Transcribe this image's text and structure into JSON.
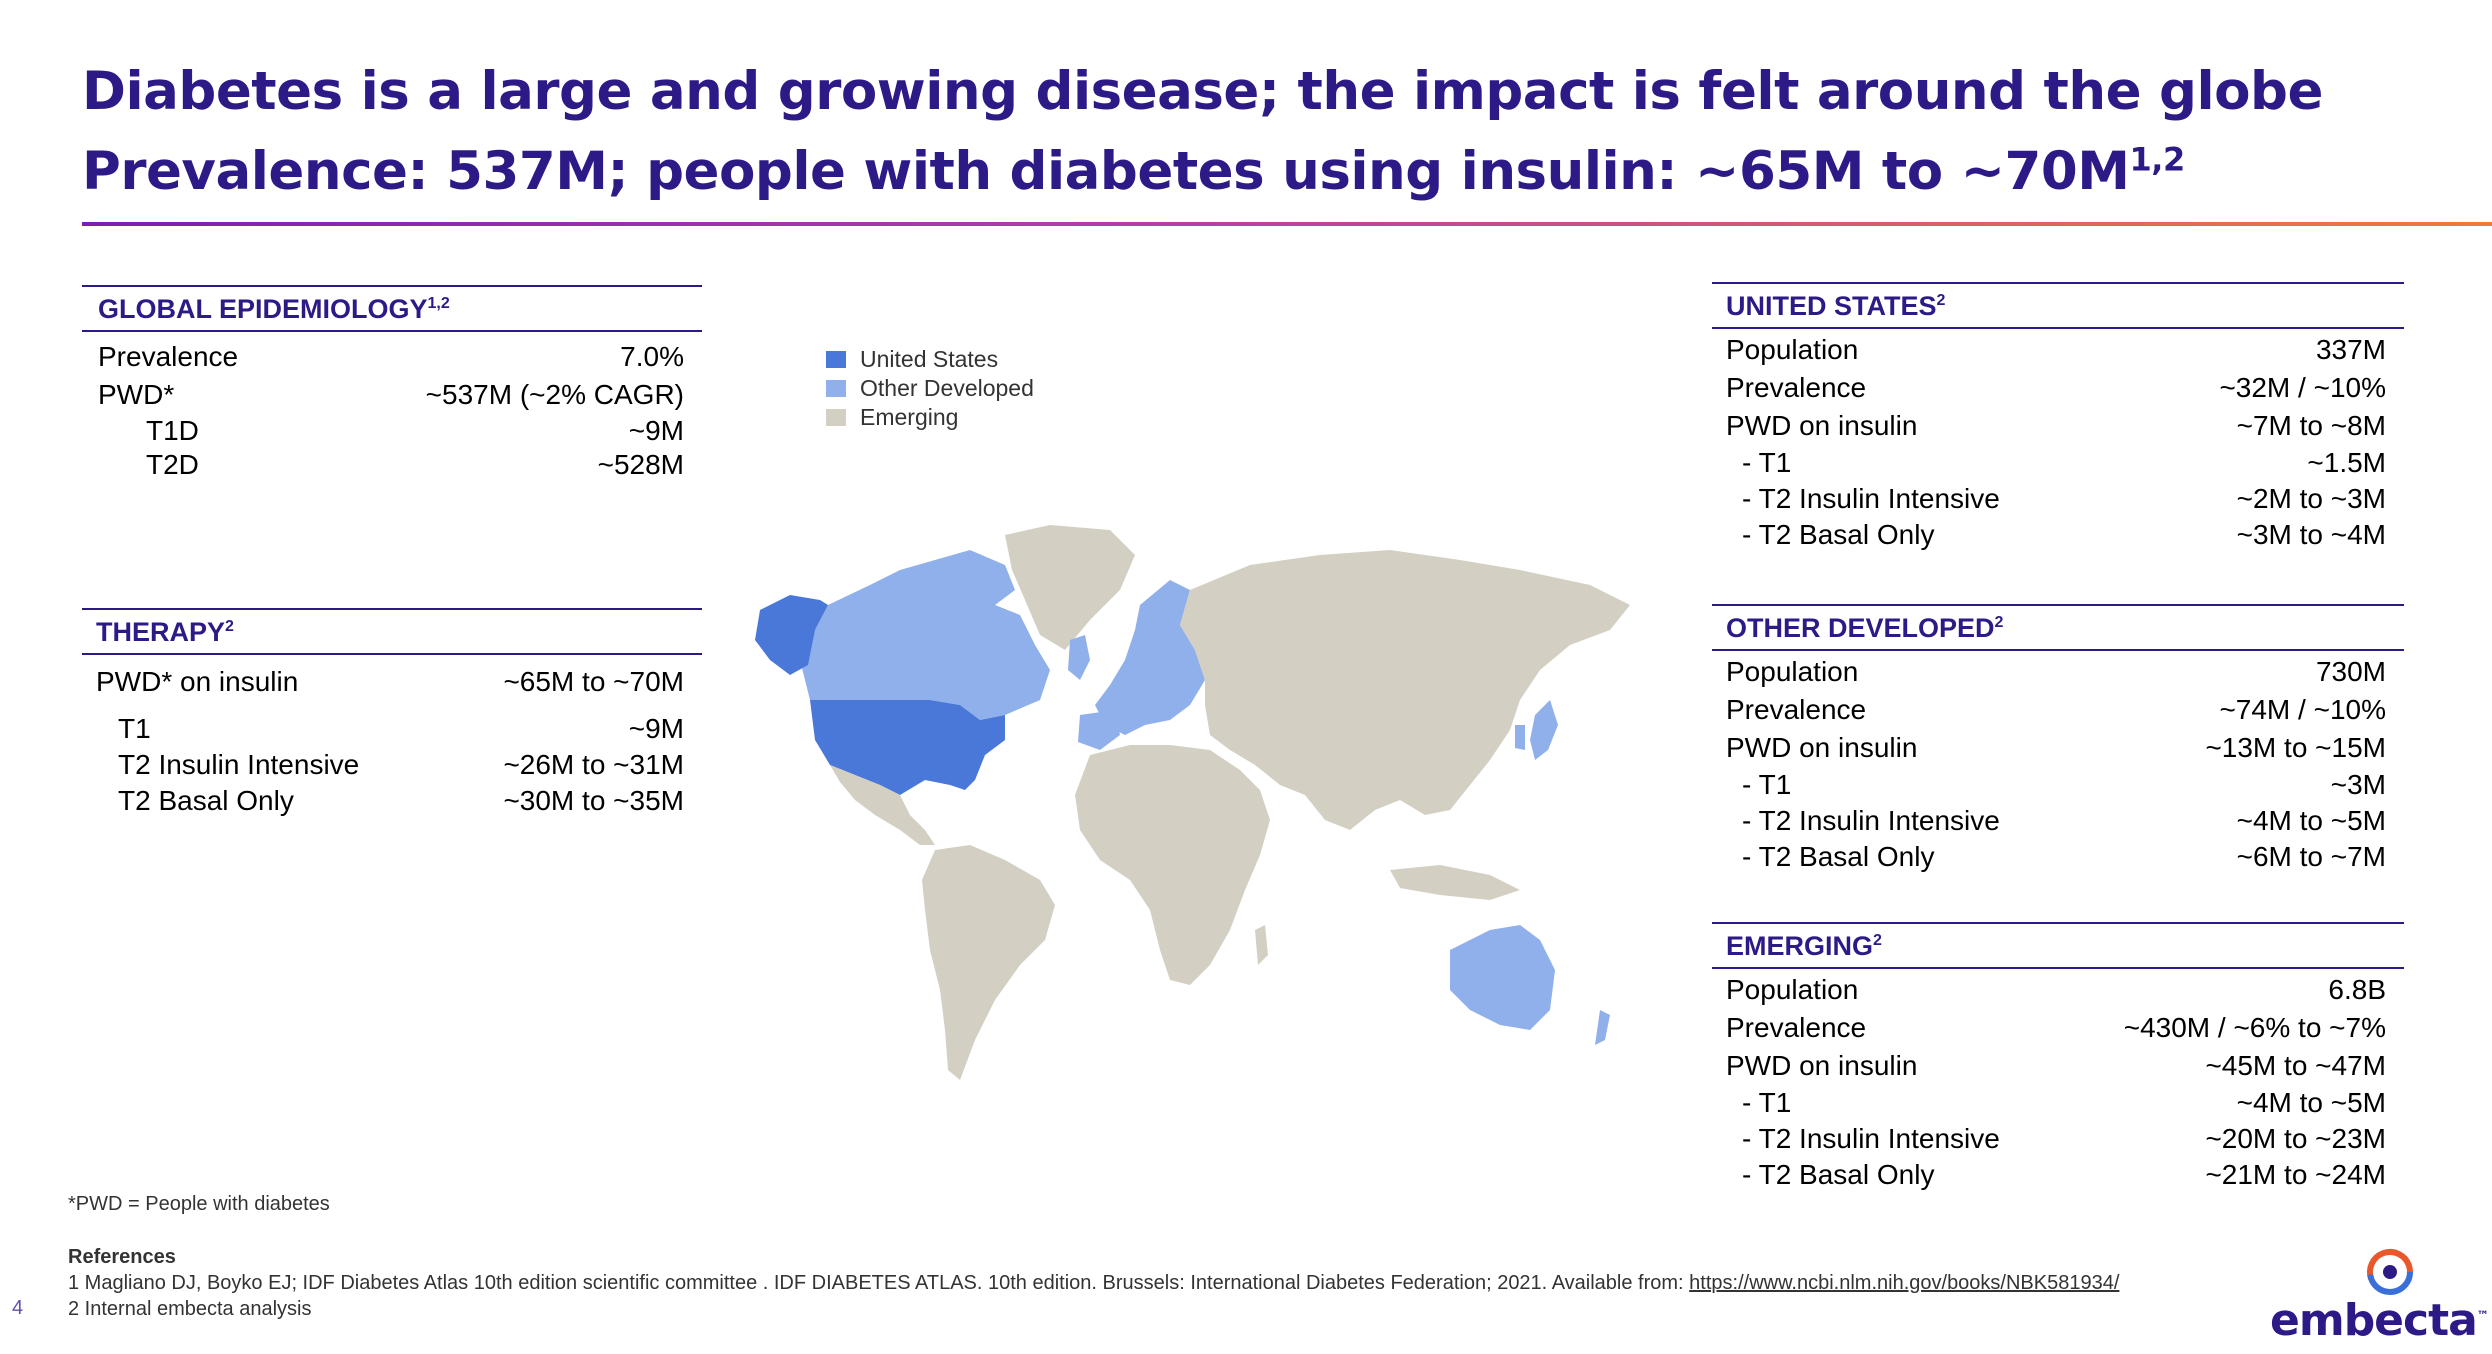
{
  "title": {
    "line1": "Diabetes is a large and growing disease; the impact is felt around the globe",
    "line2": "Prevalence: 537M; people with diabetes using insulin: ~65M to ~70M",
    "line2_sup": "1,2"
  },
  "global": {
    "heading": "GLOBAL EPIDEMIOLOGY",
    "sup": "1,2",
    "rows": [
      {
        "label": "Prevalence",
        "value": "7.0%"
      },
      {
        "label": "PWD*",
        "value": "~537M (~2% CAGR)"
      },
      {
        "label": "T1D",
        "value": "~9M"
      },
      {
        "label": "T2D",
        "value": "~528M"
      }
    ]
  },
  "therapy": {
    "heading": "THERAPY",
    "sup": "2",
    "rows": [
      {
        "label": "PWD* on insulin",
        "value": "~65M to ~70M"
      },
      {
        "label": "T1",
        "value": "~9M"
      },
      {
        "label": "T2 Insulin Intensive",
        "value": "~26M to ~31M"
      },
      {
        "label": "T2 Basal Only",
        "value": "~30M to ~35M"
      }
    ]
  },
  "legend": {
    "items": [
      {
        "label": "United States",
        "color": "#4a78d8"
      },
      {
        "label": "Other Developed",
        "color": "#8fb0ea"
      },
      {
        "label": "Emerging",
        "color": "#d3cfc3"
      }
    ]
  },
  "us": {
    "heading": "UNITED STATES",
    "sup": "2",
    "rows": [
      {
        "label": "Population",
        "value": "337M"
      },
      {
        "label": "Prevalence",
        "value": "~32M / ~10%"
      },
      {
        "label": "PWD on insulin",
        "value": "~7M to ~8M"
      },
      {
        "label": "- T1",
        "value": "~1.5M"
      },
      {
        "label": "- T2 Insulin Intensive",
        "value": "~2M to ~3M"
      },
      {
        "label": "- T2 Basal Only",
        "value": "~3M to ~4M"
      }
    ]
  },
  "other": {
    "heading": "OTHER DEVELOPED",
    "sup": "2",
    "rows": [
      {
        "label": "Population",
        "value": "730M"
      },
      {
        "label": "Prevalence",
        "value": "~74M / ~10%"
      },
      {
        "label": "PWD on insulin",
        "value": "~13M to ~15M"
      },
      {
        "label": "- T1",
        "value": "~3M"
      },
      {
        "label": "- T2 Insulin Intensive",
        "value": "~4M to ~5M"
      },
      {
        "label": "- T2 Basal Only",
        "value": "~6M to ~7M"
      }
    ]
  },
  "emerging": {
    "heading": "EMERGING",
    "sup": "2",
    "rows": [
      {
        "label": "Population",
        "value": "6.8B"
      },
      {
        "label": "Prevalence",
        "value": "~430M / ~6% to ~7%"
      },
      {
        "label": "PWD on insulin",
        "value": "~45M to ~47M"
      },
      {
        "label": "- T1",
        "value": "~4M to ~5M"
      },
      {
        "label": "- T2 Insulin Intensive",
        "value": "~20M to ~23M"
      },
      {
        "label": "- T2 Basal Only",
        "value": "~21M to ~24M"
      }
    ]
  },
  "footnote": "*PWD = People with diabetes",
  "references": {
    "heading": "References",
    "ref1_text": "1  Magliano DJ, Boyko EJ; IDF Diabetes Atlas 10th edition scientific committee . IDF DIABETES ATLAS. 10th edition. Brussels: International Diabetes Federation; 2021. Available from: ",
    "ref1_link": "https://www.ncbi.nlm.nih.gov/books/NBK581934/",
    "ref2": "2  Internal embecta analysis"
  },
  "page_number": "4",
  "logo": {
    "text": "embecta",
    "tm": "™"
  }
}
